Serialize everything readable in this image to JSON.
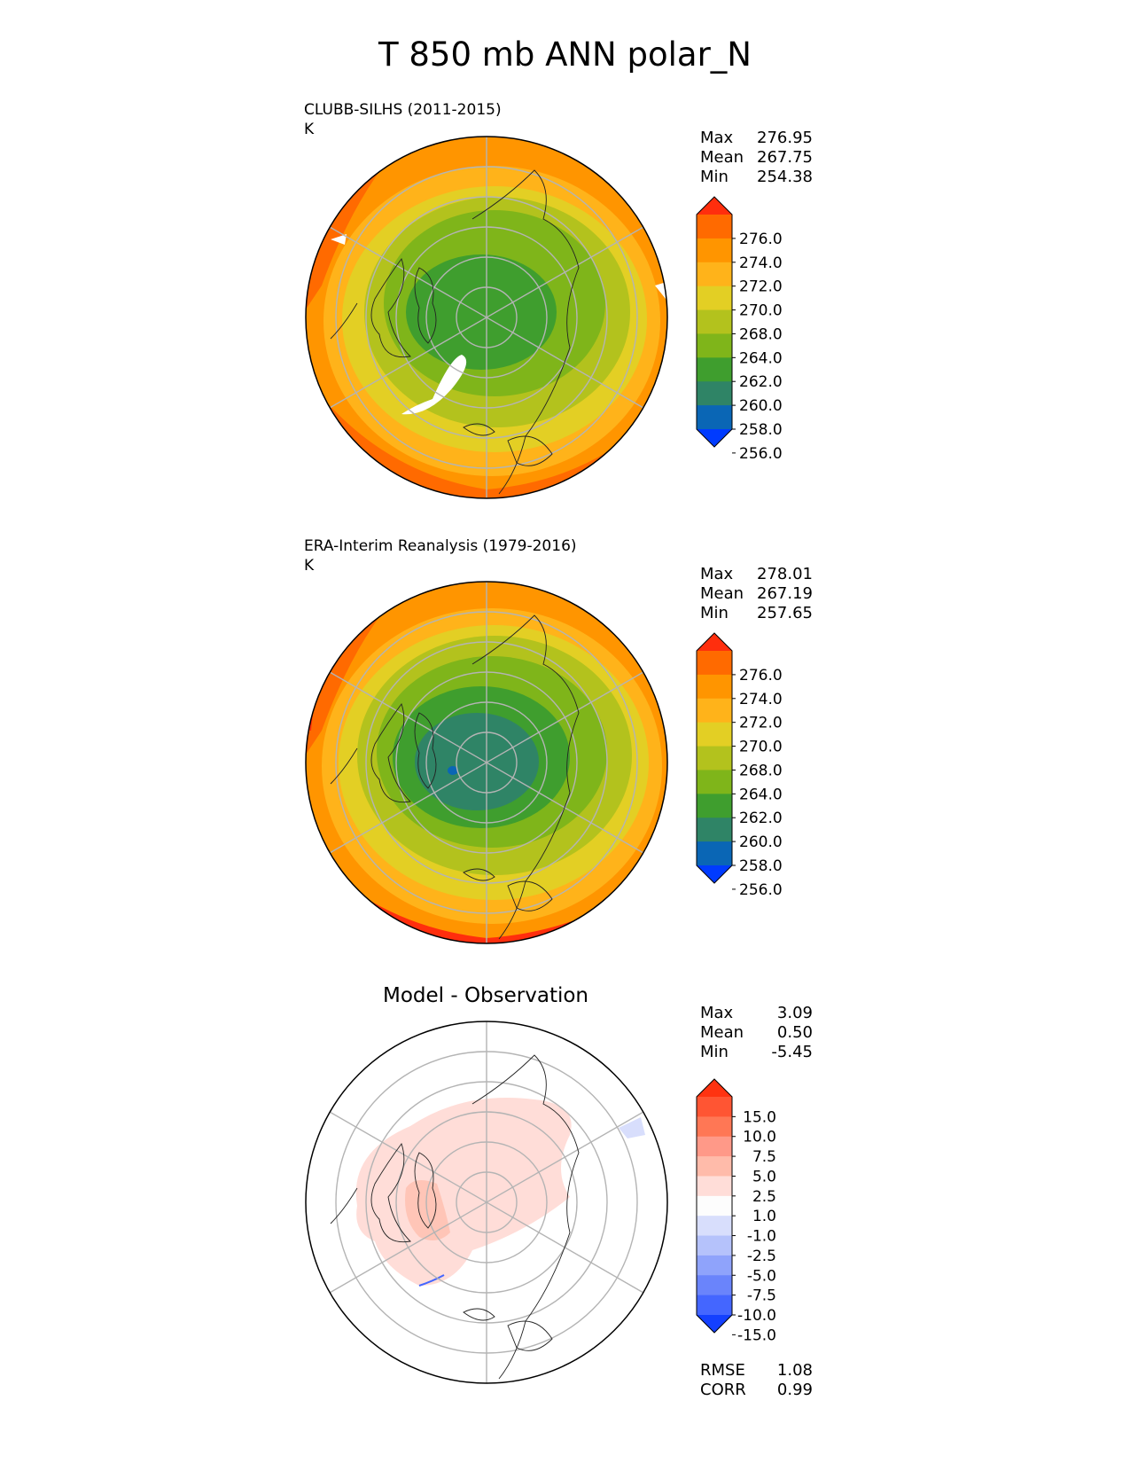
{
  "title": "T 850 mb ANN polar_N",
  "panels": [
    {
      "id": "model",
      "label": "CLUBB-SILHS (2011-2015)",
      "units": "K",
      "stats": [
        {
          "name": "Max",
          "value": "276.95"
        },
        {
          "name": "Mean",
          "value": "267.75"
        },
        {
          "name": "Min",
          "value": "254.38"
        }
      ],
      "colorbar": {
        "ticks": [
          "276.0",
          "274.0",
          "272.0",
          "270.0",
          "268.0",
          "264.0",
          "262.0",
          "260.0",
          "258.0",
          "256.0"
        ],
        "colors": [
          "#ff2e0d",
          "#ff6a00",
          "#ff9500",
          "#ffb31a",
          "#e3cf24",
          "#b3c21d",
          "#7fb51a",
          "#3f9e2e",
          "#2f8466",
          "#0a66b5",
          "#003bff"
        ]
      }
    },
    {
      "id": "obs",
      "label": "ERA-Interim Reanalysis (1979-2016)",
      "units": "K",
      "stats": [
        {
          "name": "Max",
          "value": "278.01"
        },
        {
          "name": "Mean",
          "value": "267.19"
        },
        {
          "name": "Min",
          "value": "257.65"
        }
      ],
      "colorbar": {
        "ticks": [
          "276.0",
          "274.0",
          "272.0",
          "270.0",
          "268.0",
          "264.0",
          "262.0",
          "260.0",
          "258.0",
          "256.0"
        ],
        "colors": [
          "#ff2e0d",
          "#ff6a00",
          "#ff9500",
          "#ffb31a",
          "#e3cf24",
          "#b3c21d",
          "#7fb51a",
          "#3f9e2e",
          "#2f8466",
          "#0a66b5",
          "#003bff"
        ]
      }
    },
    {
      "id": "diff",
      "label": "Model - Observation",
      "stats": [
        {
          "name": "Max",
          "value": "3.09"
        },
        {
          "name": "Mean",
          "value": "0.50"
        },
        {
          "name": "Min",
          "value": "-5.45"
        }
      ],
      "colorbar": {
        "ticks": [
          "15.0",
          "10.0",
          "7.5",
          "5.0",
          "2.5",
          "1.0",
          "-1.0",
          "-2.5",
          "-5.0",
          "-7.5",
          "-10.0",
          "-15.0"
        ],
        "colors": [
          "#ff3311",
          "#ff5533",
          "#ff7755",
          "#ff9988",
          "#ffbbaa",
          "#ffddd8",
          "#fdfdfd",
          "#d8defc",
          "#b5c2fb",
          "#8fa3fb",
          "#6a84fb",
          "#4466ff",
          "#1440ff"
        ]
      },
      "metrics": [
        {
          "name": "RMSE",
          "value": "1.08"
        },
        {
          "name": "CORR",
          "value": "0.99"
        }
      ]
    }
  ]
}
